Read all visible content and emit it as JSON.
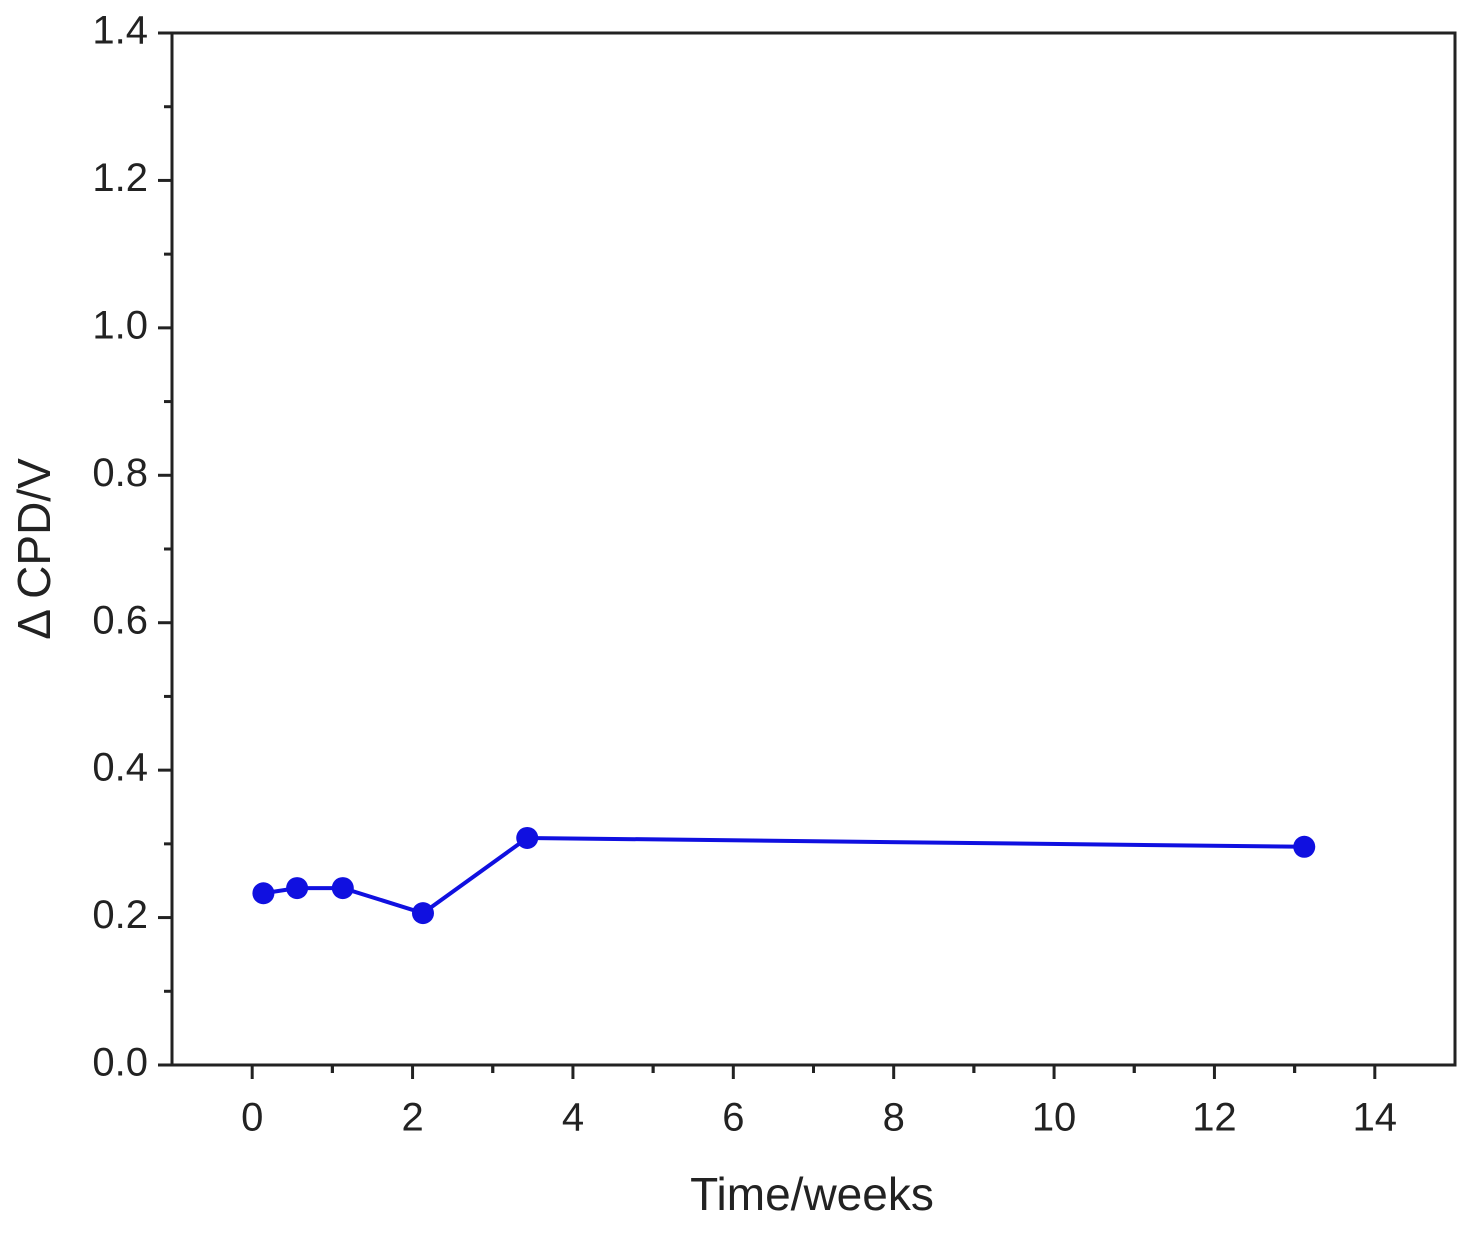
{
  "chart_data": {
    "type": "line",
    "x_label": "Time/weeks",
    "y_label": "Δ CPD/V",
    "x": [
      0.14,
      0.56,
      1.13,
      2.13,
      3.43,
      13.12
    ],
    "series": [
      {
        "color": "#1010e0",
        "values": [
          0.233,
          0.24,
          0.24,
          0.206,
          0.308,
          0.296
        ]
      }
    ],
    "xlim": [
      -1,
      15
    ],
    "xticks": [
      0,
      2,
      4,
      6,
      8,
      10,
      12,
      14
    ],
    "ylim": [
      0,
      1.4
    ],
    "yticks": [
      {
        "value": 0,
        "label": "0.0"
      },
      0.2,
      0.4,
      0.6,
      0.8,
      {
        "value": 1,
        "label": "1.0"
      },
      1.2,
      1.4
    ]
  }
}
